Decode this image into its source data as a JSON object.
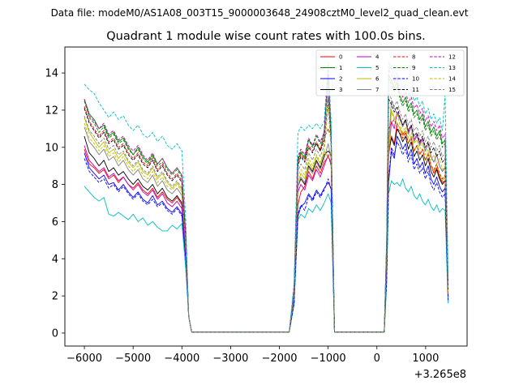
{
  "chart_data": {
    "type": "line",
    "suptitle": "Data file: modeM0/AS1A08_003T15_9000003648_24908cztM0_level2_quad_clean.evt",
    "title": "Quadrant 1 module wise count rates with 100.0s bins.",
    "xlabel": "",
    "ylabel": "",
    "x_offset_label": "+3.265e8",
    "xlim": [
      -6400,
      1850
    ],
    "ylim": [
      -0.7,
      15.4
    ],
    "xticks": [
      -6000,
      -5000,
      -4000,
      -3000,
      -2000,
      -1000,
      0,
      1000
    ],
    "xtick_labels": [
      "−6000",
      "−5000",
      "−4000",
      "−3000",
      "−2000",
      "−1000",
      "0",
      "1000"
    ],
    "yticks": [
      0,
      2,
      4,
      6,
      8,
      10,
      12,
      14
    ],
    "ytick_labels": [
      "0",
      "2",
      "4",
      "6",
      "8",
      "10",
      "12",
      "14"
    ],
    "legend_position": "top-right",
    "series": [
      {
        "name": "0",
        "color": "#ff0000",
        "style": "solid",
        "values": [
          9.9,
          9.1,
          8.9,
          8.6,
          8.8,
          8.3,
          8.5,
          8.1,
          8.4,
          8.0,
          7.8,
          8.1,
          7.7,
          7.5,
          7.8,
          7.3,
          7.6,
          7.2,
          7.0,
          7.3,
          6.9,
          7.2,
          6.8,
          7.0,
          6.9,
          7.6,
          7.9,
          8.7,
          8.3,
          9.0,
          8.6,
          9.2,
          9.5,
          10.6,
          10.2,
          11.3,
          11.0,
          10.7,
          10.9,
          10.2,
          10.6,
          9.8,
          10.1,
          9.6,
          9.9,
          9.3,
          9.7,
          9.0,
          8.6,
          8.9,
          8.4,
          8.1,
          8.2,
          7.9
        ]
      },
      {
        "name": "1",
        "color": "#008000",
        "style": "solid",
        "values": [
          12.6,
          11.8,
          11.5,
          11.0,
          11.2,
          10.6,
          10.8,
          10.3,
          10.5,
          10.0,
          9.6,
          10.0,
          9.5,
          9.2,
          9.6,
          9.1,
          9.4,
          8.9,
          8.6,
          8.9,
          8.5,
          8.8,
          8.4,
          8.6,
          9.3,
          9.7,
          9.4,
          10.4,
          10.1,
          10.2,
          9.8,
          10.9,
          13.9,
          13.6,
          13.2,
          13.5,
          12.8,
          12.4,
          12.7,
          12.1,
          12.4,
          11.8,
          12.0,
          11.5,
          11.8,
          11.1,
          11.4,
          10.8,
          11.1,
          10.6,
          10.9,
          10.2,
          10.4,
          10.0
        ]
      },
      {
        "name": "2",
        "color": "#0000ff",
        "style": "solid",
        "values": [
          9.7,
          8.9,
          8.6,
          8.3,
          8.5,
          8.0,
          8.1,
          7.7,
          8.0,
          7.6,
          7.3,
          7.6,
          7.2,
          7.0,
          7.4,
          6.9,
          7.1,
          6.7,
          6.5,
          6.8,
          6.4,
          6.6,
          6.2,
          6.5,
          6.3,
          6.8,
          7.0,
          7.5,
          7.2,
          7.7,
          7.4,
          7.8,
          8.1,
          9.8,
          9.4,
          10.6,
          10.3,
          9.9,
          10.2,
          9.5,
          9.9,
          9.1,
          9.4,
          8.9,
          9.2,
          8.6,
          9.0,
          8.3,
          8.0,
          8.4,
          7.9,
          7.6,
          7.8,
          7.4
        ]
      },
      {
        "name": "3",
        "color": "#000000",
        "style": "solid",
        "values": [
          10.6,
          9.7,
          9.4,
          9.0,
          9.3,
          8.7,
          8.9,
          8.5,
          8.7,
          8.3,
          8.0,
          8.3,
          7.9,
          7.7,
          8.0,
          7.5,
          7.8,
          7.3,
          7.1,
          7.4,
          7.0,
          7.3,
          6.8,
          7.1,
          7.9,
          8.3,
          8.0,
          9.0,
          8.7,
          9.3,
          8.9,
          9.6,
          9.8,
          10.5,
          10.1,
          11.0,
          10.7,
          10.3,
          10.6,
          9.9,
          10.3,
          9.5,
          9.8,
          9.3,
          9.6,
          9.0,
          9.4,
          8.7,
          8.4,
          8.8,
          8.3,
          8.0,
          8.2,
          7.8
        ]
      },
      {
        "name": "4",
        "color": "#bf00bf",
        "style": "solid",
        "values": [
          10.1,
          9.3,
          9.0,
          8.7,
          8.9,
          8.4,
          8.6,
          8.2,
          8.4,
          8.0,
          7.7,
          8.0,
          7.6,
          7.4,
          7.7,
          7.2,
          7.5,
          7.0,
          6.8,
          7.1,
          6.7,
          7.0,
          6.6,
          6.9,
          7.6,
          8.0,
          7.7,
          8.5,
          8.2,
          8.8,
          8.4,
          9.0,
          9.6,
          11.4,
          11.0,
          11.9,
          11.6,
          11.2,
          11.5,
          10.8,
          11.2,
          10.4,
          10.7,
          10.2,
          10.5,
          9.8,
          10.2,
          9.5,
          9.2,
          9.6,
          9.0,
          8.7,
          8.9,
          8.5
        ]
      },
      {
        "name": "5",
        "color": "#00bfbf",
        "style": "solid",
        "values": [
          7.9,
          7.6,
          7.3,
          7.1,
          7.3,
          6.4,
          6.3,
          6.5,
          6.3,
          6.1,
          6.4,
          6.0,
          6.2,
          5.8,
          6.0,
          5.7,
          5.5,
          5.5,
          5.8,
          5.6,
          5.9,
          5.7,
          5.6,
          5.3,
          6.1,
          6.4,
          6.2,
          6.7,
          6.5,
          6.9,
          6.6,
          7.0,
          7.5,
          8.2,
          8.0,
          8.1,
          7.9,
          8.3,
          7.8,
          7.6,
          7.9,
          7.4,
          7.2,
          7.5,
          7.1,
          6.9,
          7.2,
          6.8,
          6.6,
          6.9,
          6.5,
          6.7,
          6.6,
          6.4
        ]
      },
      {
        "name": "6",
        "color": "#bfbf00",
        "style": "solid",
        "values": [
          11.6,
          10.8,
          10.4,
          10.0,
          10.3,
          9.7,
          9.9,
          9.4,
          9.7,
          9.2,
          8.9,
          9.2,
          8.7,
          8.5,
          8.9,
          8.3,
          8.6,
          8.1,
          7.8,
          8.1,
          7.7,
          8.0,
          7.5,
          7.8,
          8.1,
          8.6,
          8.3,
          9.2,
          8.8,
          9.5,
          9.1,
          9.8,
          9.4,
          12.0,
          11.6,
          11.3,
          11.0,
          10.6,
          10.9,
          10.2,
          10.6,
          9.8,
          10.1,
          9.6,
          9.9,
          9.3,
          9.7,
          9.0,
          8.7,
          9.1,
          8.5,
          8.2,
          8.4,
          8.0
        ]
      },
      {
        "name": "7",
        "color": "#808080",
        "style": "solid",
        "values": [
          11.1,
          10.3,
          10.0,
          9.6,
          9.9,
          9.3,
          9.5,
          9.0,
          9.3,
          8.8,
          8.5,
          8.8,
          8.3,
          8.1,
          8.5,
          7.9,
          8.2,
          7.7,
          7.5,
          7.8,
          7.4,
          7.7,
          7.2,
          7.5,
          7.9,
          8.4,
          8.1,
          8.9,
          8.6,
          9.2,
          8.8,
          9.4,
          10.2,
          12.5,
          12.1,
          11.8,
          11.5,
          11.1,
          11.4,
          10.7,
          11.1,
          10.3,
          10.6,
          10.1,
          10.4,
          9.8,
          10.2,
          9.5,
          9.2,
          9.6,
          9.0,
          8.7,
          8.9,
          8.5
        ]
      },
      {
        "name": "8",
        "color": "#ff0000",
        "style": "dashed",
        "values": [
          12.2,
          11.4,
          11.0,
          10.6,
          10.9,
          10.3,
          10.5,
          10.0,
          10.2,
          9.7,
          9.4,
          9.7,
          9.2,
          9.0,
          9.4,
          8.8,
          9.1,
          8.6,
          8.3,
          8.6,
          8.2,
          8.5,
          8.0,
          8.3,
          9.2,
          9.6,
          9.3,
          10.1,
          9.8,
          10.3,
          9.9,
          10.5,
          11.0,
          11.3,
          11.5,
          11.1,
          10.8,
          10.5,
          10.8,
          10.2,
          10.5,
          9.8,
          10.1,
          9.6,
          9.9,
          9.3,
          9.6,
          9.0,
          8.8,
          9.1,
          8.6,
          8.3,
          8.5,
          8.1
        ]
      },
      {
        "name": "9",
        "color": "#008000",
        "style": "dashed",
        "values": [
          12.5,
          11.6,
          11.3,
          10.8,
          11.1,
          10.5,
          10.7,
          10.2,
          10.4,
          9.9,
          9.6,
          9.9,
          9.4,
          9.1,
          9.5,
          9.0,
          9.2,
          8.8,
          8.5,
          8.8,
          8.4,
          8.7,
          8.2,
          8.5,
          9.4,
          9.8,
          9.5,
          10.4,
          10.0,
          10.6,
          10.2,
          10.7,
          13.7,
          13.4,
          13.0,
          13.3,
          12.6,
          12.2,
          12.5,
          11.9,
          12.2,
          11.6,
          11.8,
          11.3,
          11.6,
          10.9,
          11.2,
          10.6,
          10.9,
          10.4,
          10.7,
          10.0,
          10.2,
          9.8
        ]
      },
      {
        "name": "10",
        "color": "#0000ff",
        "style": "dashed",
        "values": [
          9.4,
          8.7,
          8.4,
          8.1,
          8.3,
          7.8,
          8.0,
          7.6,
          7.9,
          7.5,
          7.2,
          7.5,
          7.1,
          6.9,
          7.2,
          6.8,
          7.0,
          6.6,
          6.4,
          6.7,
          6.3,
          6.6,
          6.2,
          6.4,
          6.4,
          6.9,
          6.6,
          7.4,
          7.1,
          7.6,
          7.3,
          7.7,
          8.3,
          10.0,
          9.6,
          10.3,
          10.0,
          9.6,
          9.9,
          9.2,
          9.6,
          8.8,
          9.1,
          8.6,
          8.9,
          8.3,
          8.7,
          8.0,
          7.7,
          8.1,
          7.6,
          7.3,
          7.5,
          7.1
        ]
      },
      {
        "name": "11",
        "color": "#000000",
        "style": "dashed",
        "values": [
          12.1,
          11.3,
          10.9,
          10.5,
          10.8,
          10.2,
          10.4,
          9.9,
          10.1,
          9.6,
          9.3,
          9.6,
          9.1,
          8.9,
          9.3,
          8.7,
          9.0,
          8.5,
          8.2,
          8.5,
          8.1,
          8.4,
          7.9,
          8.2,
          9.0,
          9.5,
          9.2,
          10.0,
          9.7,
          10.2,
          9.8,
          10.4,
          12.6,
          12.3,
          11.9,
          12.2,
          11.6,
          11.2,
          11.5,
          10.9,
          11.2,
          10.6,
          10.8,
          10.3,
          10.6,
          10.0,
          10.3,
          9.7,
          10.0,
          9.5,
          9.8,
          9.2,
          9.4,
          9.0
        ]
      },
      {
        "name": "12",
        "color": "#bf00bf",
        "style": "dashed",
        "values": [
          12.6,
          11.7,
          11.4,
          11.0,
          11.3,
          10.7,
          10.9,
          10.4,
          10.6,
          10.1,
          9.8,
          10.1,
          9.6,
          9.3,
          9.7,
          9.1,
          9.4,
          8.9,
          8.6,
          8.9,
          8.5,
          8.8,
          8.3,
          8.6,
          9.5,
          9.9,
          9.6,
          10.5,
          10.1,
          10.7,
          10.3,
          10.8,
          14.2,
          13.9,
          13.5,
          13.8,
          13.1,
          12.7,
          13.0,
          12.4,
          12.7,
          12.1,
          12.3,
          11.8,
          12.1,
          11.4,
          11.7,
          11.1,
          11.4,
          10.9,
          11.2,
          10.5,
          10.7,
          10.3
        ]
      },
      {
        "name": "13",
        "color": "#00bfbf",
        "style": "dashed",
        "values": [
          13.4,
          13.1,
          12.9,
          12.4,
          12.0,
          11.6,
          11.9,
          11.5,
          11.7,
          11.2,
          10.9,
          11.2,
          10.7,
          10.5,
          10.8,
          10.3,
          10.6,
          10.1,
          9.9,
          10.2,
          9.8,
          10.1,
          9.9,
          10.0,
          10.8,
          11.1,
          10.9,
          11.2,
          11.0,
          11.3,
          11.0,
          11.4,
          14.6,
          14.2,
          13.8,
          14.0,
          13.6,
          13.1,
          13.4,
          12.8,
          13.1,
          12.5,
          12.7,
          12.2,
          12.5,
          11.8,
          12.1,
          11.5,
          11.8,
          11.3,
          11.6,
          10.9,
          12.8,
          12.3
        ]
      },
      {
        "name": "14",
        "color": "#bfbf00",
        "style": "dashed",
        "values": [
          11.3,
          10.5,
          10.2,
          9.8,
          10.1,
          9.5,
          9.7,
          9.2,
          9.5,
          9.0,
          8.7,
          9.0,
          8.5,
          8.3,
          8.7,
          8.1,
          8.4,
          7.9,
          7.7,
          8.0,
          7.6,
          7.9,
          7.4,
          7.7,
          8.4,
          8.8,
          8.5,
          9.4,
          9.0,
          9.6,
          9.2,
          9.8,
          12.2,
          11.9,
          11.5,
          11.8,
          11.2,
          10.8,
          11.1,
          10.5,
          10.8,
          10.2,
          10.4,
          9.9,
          10.2,
          9.6,
          9.9,
          9.3,
          9.6,
          9.1,
          9.4,
          8.8,
          9.0,
          8.6
        ]
      },
      {
        "name": "15",
        "color": "#808080",
        "style": "dashed",
        "values": [
          11.7,
          10.9,
          10.6,
          10.2,
          10.5,
          9.9,
          10.1,
          9.6,
          9.8,
          9.3,
          9.0,
          9.3,
          8.8,
          8.6,
          9.0,
          8.4,
          8.7,
          8.2,
          7.9,
          8.2,
          7.8,
          8.1,
          7.6,
          7.9,
          8.7,
          9.1,
          8.8,
          9.7,
          9.3,
          9.9,
          9.5,
          10.1,
          12.9,
          12.6,
          12.2,
          12.5,
          11.9,
          11.5,
          11.8,
          11.2,
          11.5,
          10.9,
          11.1,
          10.6,
          10.9,
          10.3,
          10.6,
          10.0,
          10.3,
          9.8,
          10.1,
          9.5,
          9.7,
          9.3
        ]
      }
    ]
  }
}
